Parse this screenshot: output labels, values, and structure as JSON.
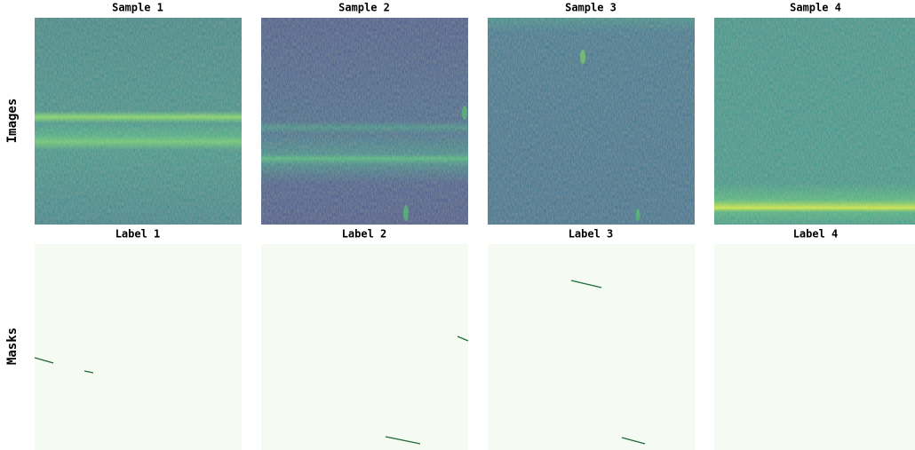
{
  "row_labels": [
    "Images",
    "Masks"
  ],
  "columns": [
    {
      "image_title": "Sample 1",
      "mask_title": "Label 1"
    },
    {
      "image_title": "Sample 2",
      "mask_title": "Label 2"
    },
    {
      "image_title": "Sample 3",
      "mask_title": "Label 3"
    },
    {
      "image_title": "Sample 4",
      "mask_title": "Label 4"
    }
  ]
}
